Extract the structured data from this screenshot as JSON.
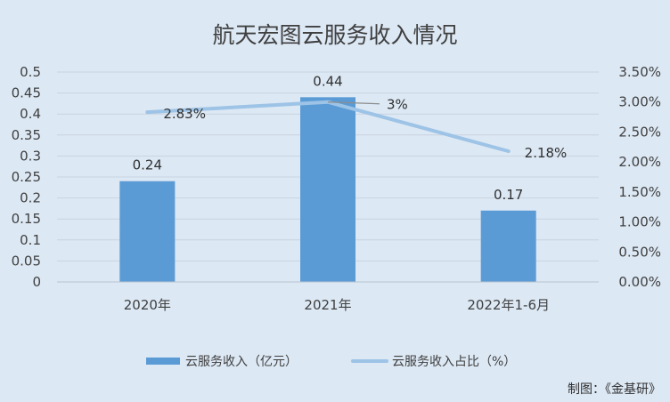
{
  "chart_data": {
    "type": "bar",
    "title": "航天宏图云服务收入情况",
    "categories": [
      "2020年",
      "2021年",
      "2022年1-6月"
    ],
    "series": [
      {
        "name": "云服务收入（亿元）",
        "type": "bar",
        "axis": "left",
        "values": [
          0.24,
          0.44,
          0.17
        ],
        "labels": [
          "0.24",
          "0.44",
          "0.17"
        ],
        "color": "#5b9bd5"
      },
      {
        "name": "云服务收入占比（%）",
        "type": "line",
        "axis": "right",
        "values": [
          2.83,
          3.0,
          2.18
        ],
        "labels": [
          "2.83%",
          "3%",
          "2.18%"
        ],
        "color": "#9dc3e6"
      }
    ],
    "y_left": {
      "min": 0,
      "max": 0.5,
      "ticks": [
        "0",
        "0.05",
        "0.1",
        "0.15",
        "0.2",
        "0.25",
        "0.3",
        "0.35",
        "0.4",
        "0.45",
        "0.5"
      ]
    },
    "y_right": {
      "min": 0,
      "max": 3.5,
      "ticks": [
        "0.00%",
        "0.50%",
        "1.00%",
        "1.50%",
        "2.00%",
        "2.50%",
        "3.00%",
        "3.50%"
      ]
    },
    "grid": true,
    "legend": "bottom-center"
  },
  "credit": "制图：《金基研》"
}
